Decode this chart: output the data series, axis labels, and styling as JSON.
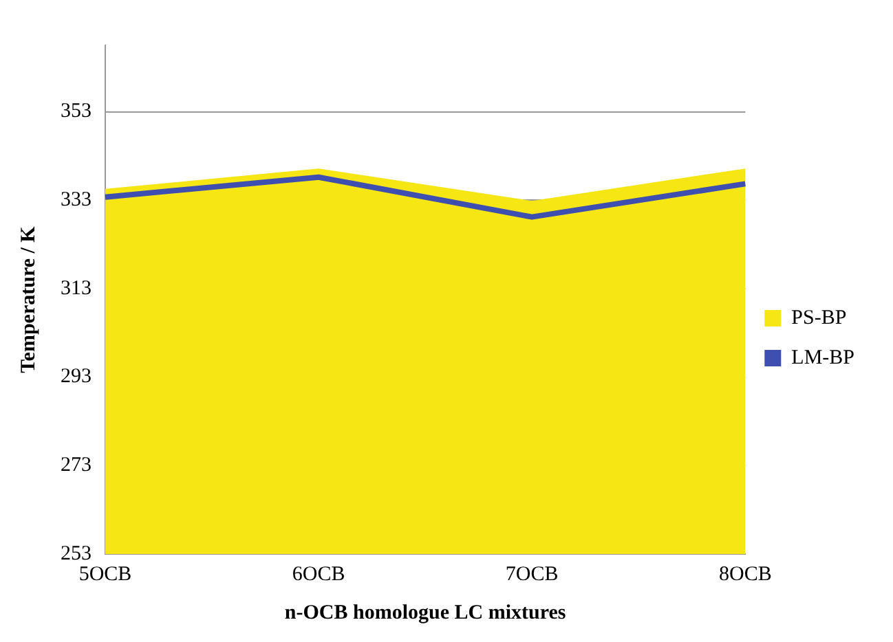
{
  "chart_data": {
    "type": "area",
    "xlabel": "n-OCB homologue LC mixtures",
    "ylabel": "Temperature / K",
    "categories": [
      "5OCB",
      "6OCB",
      "7OCB",
      "8OCB"
    ],
    "series": [
      {
        "name": "PS-BP",
        "color": "#f5e614",
        "values": [
          335.4,
          340,
          332.7,
          340
        ]
      },
      {
        "name": "LM-BP",
        "type": "line",
        "color": "#3f4fb0",
        "values": [
          333.7,
          338.2,
          329.2,
          336.7
        ]
      }
    ],
    "ylim": [
      253,
      368
    ],
    "yticks": [
      253,
      273,
      293,
      313,
      333,
      353
    ],
    "grid": "y",
    "legend": "right",
    "marker": "none"
  }
}
